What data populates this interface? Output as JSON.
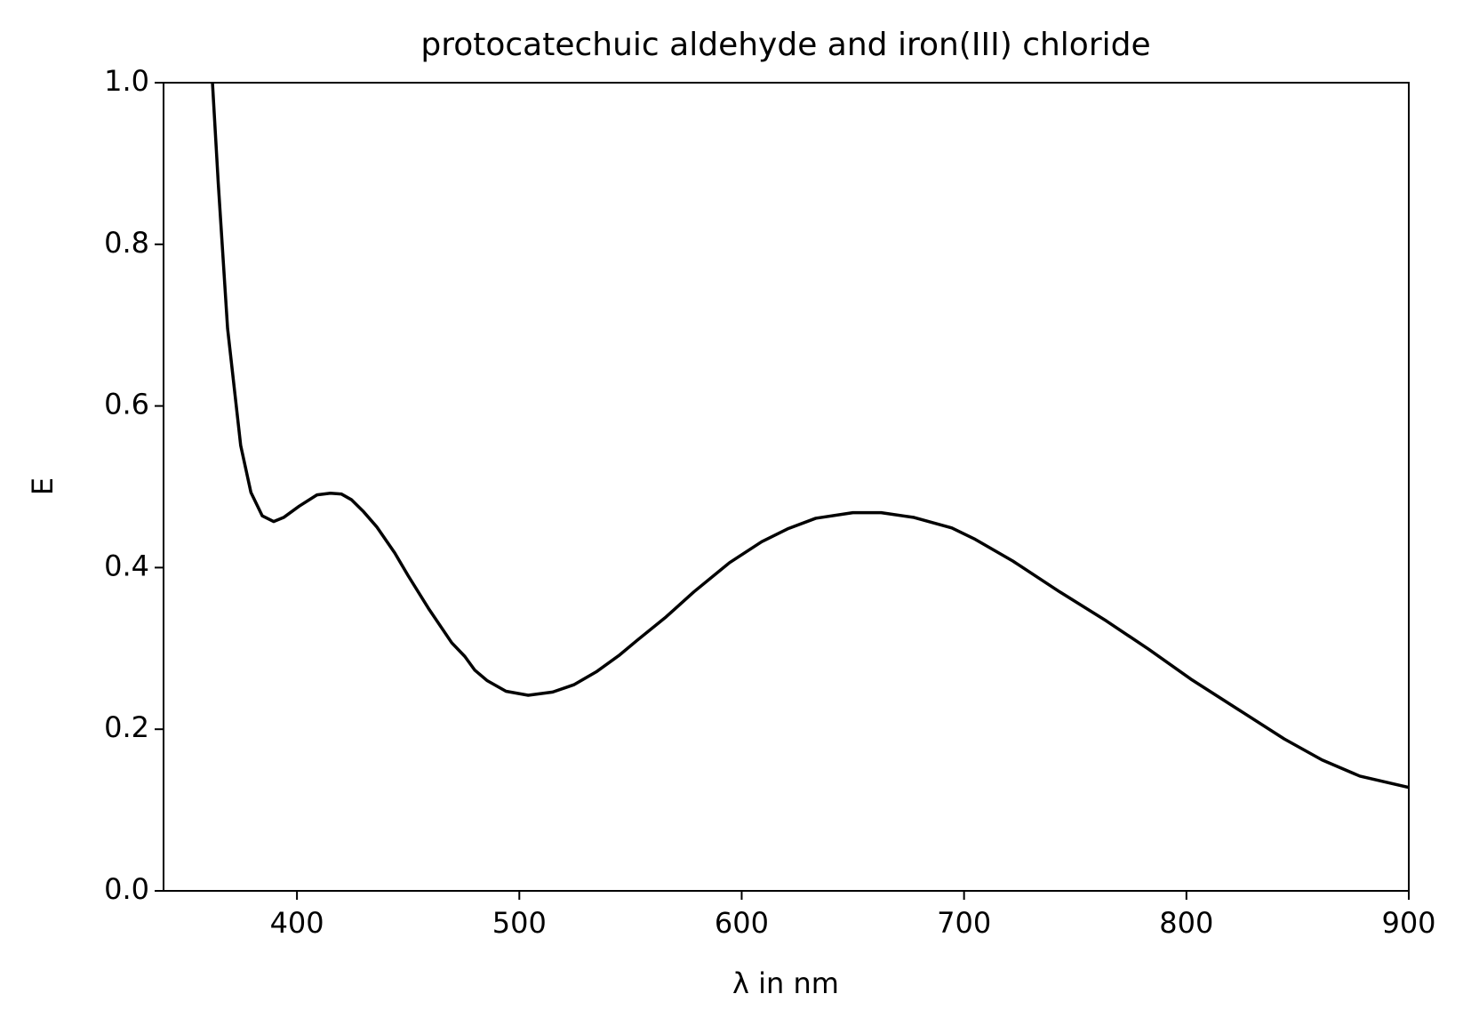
{
  "chart_data": {
    "type": "line",
    "title": "protocatechuic aldehyde and iron(III) chloride",
    "x_label": "λ in nm",
    "y_label": "E",
    "color": "#000000",
    "x": [
      362,
      364.6,
      368.8,
      374.7,
      379.3,
      384.4,
      389.5,
      394,
      401,
      409,
      415,
      420,
      424.5,
      430,
      436,
      444,
      450,
      459.5,
      469.6,
      475.5,
      480,
      485.6,
      494,
      504,
      515,
      524.5,
      534.6,
      544.7,
      553,
      566,
      578.5,
      594.5,
      609,
      620.7,
      633.3,
      650,
      662.7,
      677.5,
      694.5,
      705,
      722,
      743,
      764,
      783,
      802,
      823,
      844,
      861,
      878,
      900
    ],
    "values": [
      1.0,
      0.876,
      0.696,
      0.551,
      0.493,
      0.464,
      0.457,
      0.462,
      0.476,
      0.49,
      0.492,
      0.491,
      0.484,
      0.469,
      0.45,
      0.418,
      0.39,
      0.348,
      0.307,
      0.29,
      0.273,
      0.26,
      0.247,
      0.242,
      0.246,
      0.255,
      0.271,
      0.291,
      0.31,
      0.339,
      0.37,
      0.406,
      0.432,
      0.448,
      0.461,
      0.468,
      0.468,
      0.462,
      0.449,
      0.435,
      0.408,
      0.37,
      0.334,
      0.299,
      0.262,
      0.225,
      0.188,
      0.162,
      0.142,
      0.128
    ],
    "xlim": [
      340,
      900
    ],
    "xticks": [
      400,
      500,
      600,
      700,
      800,
      900
    ],
    "ylim": [
      0,
      1
    ],
    "yticks": [
      {
        "value": 0,
        "label": "0.0"
      },
      0.2,
      0.4,
      0.6,
      0.8,
      {
        "value": 1,
        "label": "1.0"
      }
    ],
    "grid": false
  }
}
